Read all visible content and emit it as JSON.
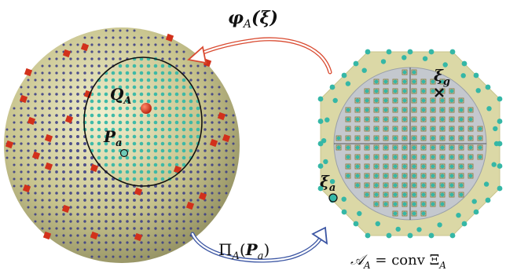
{
  "labels": {
    "phi": "φ",
    "phi_sub": "A",
    "phi_arg": "(ξ)",
    "pi": "Π",
    "pi_sub": "A",
    "pi_arg_open": "(",
    "pi_arg_P": "P",
    "pi_arg_sub": "a",
    "pi_arg_close": ")",
    "QA_main": "Q",
    "QA_sub": "A",
    "Pa_main": "P",
    "Pa_sub": "a",
    "xi_g_main": "ξ",
    "xi_g_sub": "g",
    "xi_a_main": "ξ",
    "xi_a_sub": "a",
    "conv_script": "𝒜",
    "conv_sub": "A",
    "conv_rest": " = conv Ξ",
    "conv_sub2": "A"
  },
  "colors": {
    "sphere_fill": "#b5b07a",
    "outer_point": "#3d3f86",
    "inner_point": "#35b7a6",
    "red_marker": "#d2311b",
    "polygon_fill": "#dbd8a6",
    "disc_fill": "#c4c8ce",
    "top_arrow": "#d94a30",
    "bottom_arrow": "#3b55a3"
  }
}
